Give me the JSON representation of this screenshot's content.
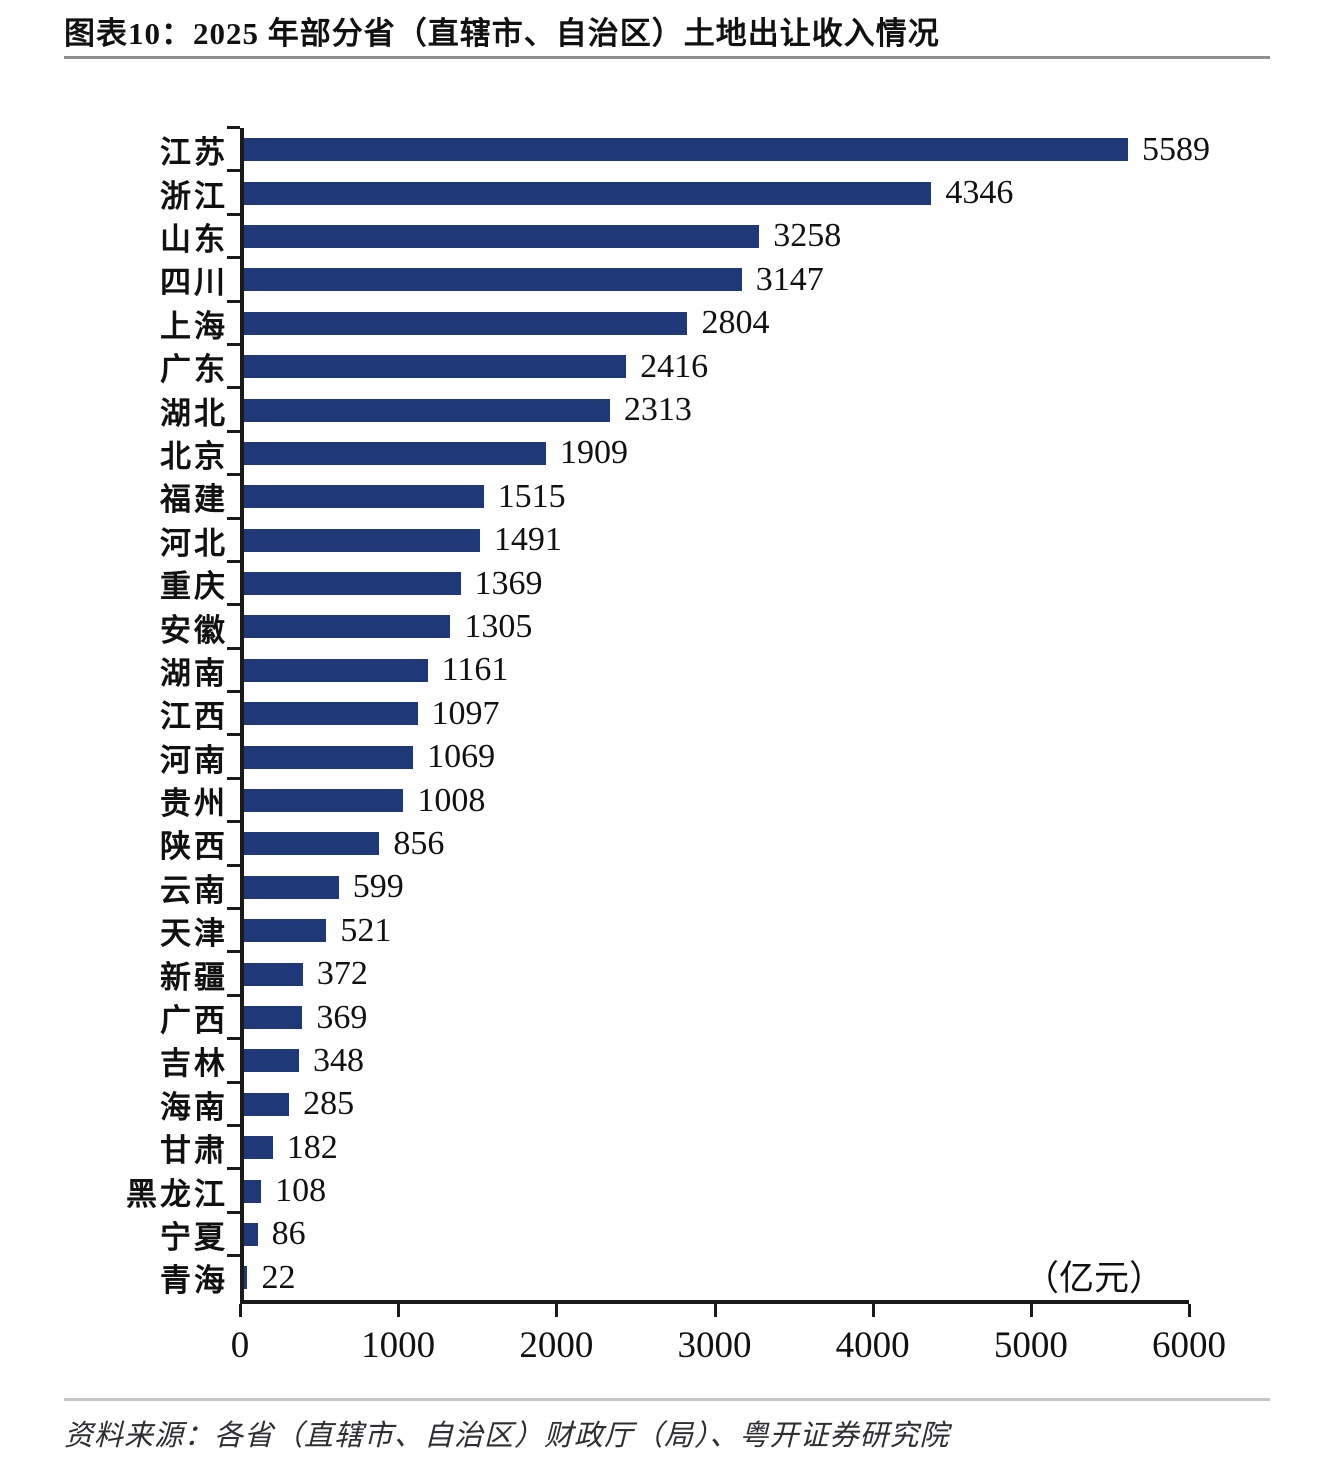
{
  "title": "图表10：2025 年部分省（直辖市、自治区）土地出让收入情况",
  "source": "资料来源：各省（直辖市、自治区）财政厅（局）、粤开证券研究院",
  "colors": {
    "bar": "#1F3878",
    "axis": "#1a1a1a",
    "title_rule": "#8f8f8f",
    "footer_rule": "#c6c6c6"
  },
  "chart_data": {
    "type": "bar",
    "orientation": "horizontal",
    "title": "图表10：2025 年部分省（直辖市、自治区）土地出让收入情况",
    "unit": "（亿元）",
    "xlabel": "",
    "ylabel": "",
    "categories": [
      "江苏",
      "浙江",
      "山东",
      "四川",
      "上海",
      "广东",
      "湖北",
      "北京",
      "福建",
      "河北",
      "重庆",
      "安徽",
      "湖南",
      "江西",
      "河南",
      "贵州",
      "陕西",
      "云南",
      "天津",
      "新疆",
      "广西",
      "吉林",
      "海南",
      "甘肃",
      "黑龙江",
      "宁夏",
      "青海"
    ],
    "values": [
      5589,
      4346,
      3258,
      3147,
      2804,
      2416,
      2313,
      1909,
      1515,
      1491,
      1369,
      1305,
      1161,
      1097,
      1069,
      1008,
      856,
      599,
      521,
      372,
      369,
      348,
      285,
      182,
      108,
      86,
      22
    ],
    "xlim": [
      0,
      6000
    ],
    "x_ticks": [
      0,
      1000,
      2000,
      3000,
      4000,
      5000,
      6000
    ],
    "bar_color": "#1F3878",
    "value_labels": true,
    "grid": false,
    "legend": false
  }
}
